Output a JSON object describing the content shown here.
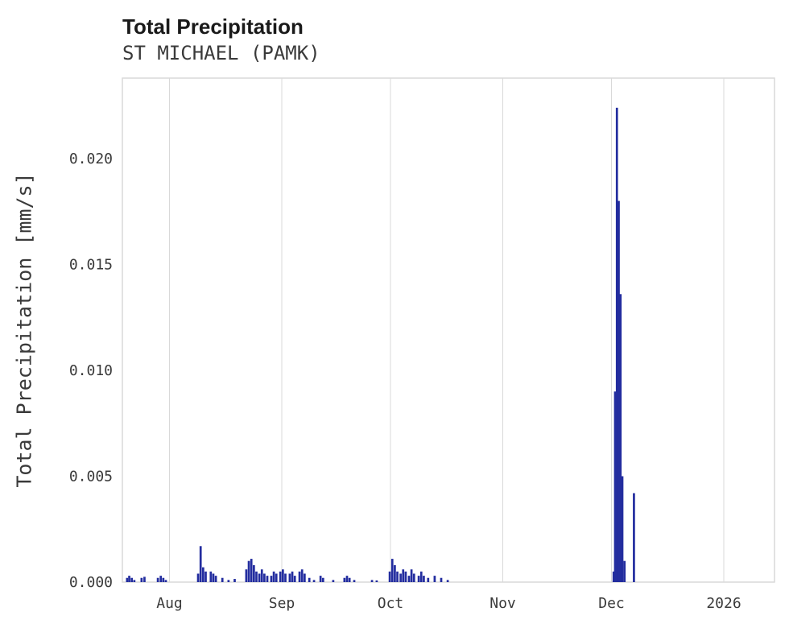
{
  "chart_data": {
    "type": "bar",
    "title": "Total Precipitation",
    "subtitle": "ST MICHAEL (PAMK)",
    "ylabel": "Total Precipitation [mm/s]",
    "xlabel": "",
    "legend": null,
    "grid": "vertical-only",
    "bar_color": "#232d9f",
    "grid_color": "#d9d9d9",
    "axis_text_color": "#3a3a3a",
    "ylim": [
      0,
      0.0238
    ],
    "x_domain_days": [
      0,
      180
    ],
    "x_ticks": [
      {
        "label": "Aug",
        "d": 13
      },
      {
        "label": "Sep",
        "d": 44
      },
      {
        "label": "Oct",
        "d": 74
      },
      {
        "label": "Nov",
        "d": 105
      },
      {
        "label": "Dec",
        "d": 135
      },
      {
        "label": "2026",
        "d": 166
      }
    ],
    "y_ticks": [
      {
        "label": "0.000",
        "v": 0.0
      },
      {
        "label": "0.005",
        "v": 0.005
      },
      {
        "label": "0.010",
        "v": 0.01
      },
      {
        "label": "0.015",
        "v": 0.015
      },
      {
        "label": "0.020",
        "v": 0.02
      }
    ],
    "bar_width_days": 0.6,
    "points": [
      [
        1.3,
        0.0002
      ],
      [
        1.9,
        0.0003
      ],
      [
        2.6,
        0.0002
      ],
      [
        3.3,
        0.0001
      ],
      [
        5.3,
        0.0002
      ],
      [
        6.1,
        0.00025
      ],
      [
        9.8,
        0.0002
      ],
      [
        10.6,
        0.0003
      ],
      [
        11.3,
        0.0002
      ],
      [
        12.0,
        0.0001
      ],
      [
        20.9,
        0.0004
      ],
      [
        21.6,
        0.0017
      ],
      [
        22.3,
        0.0007
      ],
      [
        23.0,
        0.0005
      ],
      [
        24.4,
        0.0005
      ],
      [
        25.1,
        0.0004
      ],
      [
        25.8,
        0.0003
      ],
      [
        27.6,
        0.0002
      ],
      [
        29.3,
        0.0001
      ],
      [
        31.0,
        0.00015
      ],
      [
        34.2,
        0.0006
      ],
      [
        34.9,
        0.001
      ],
      [
        35.6,
        0.0011
      ],
      [
        36.3,
        0.0008
      ],
      [
        37.0,
        0.0005
      ],
      [
        37.8,
        0.0004
      ],
      [
        38.5,
        0.0006
      ],
      [
        39.2,
        0.0004
      ],
      [
        40.0,
        0.0003
      ],
      [
        41.1,
        0.0003
      ],
      [
        41.8,
        0.0005
      ],
      [
        42.5,
        0.0004
      ],
      [
        43.6,
        0.0005
      ],
      [
        44.3,
        0.0006
      ],
      [
        45.0,
        0.0004
      ],
      [
        46.2,
        0.0004
      ],
      [
        46.9,
        0.0005
      ],
      [
        47.6,
        0.0003
      ],
      [
        48.9,
        0.0005
      ],
      [
        49.6,
        0.0006
      ],
      [
        50.3,
        0.0004
      ],
      [
        51.6,
        0.0002
      ],
      [
        52.9,
        0.0001
      ],
      [
        54.7,
        0.0003
      ],
      [
        55.4,
        0.0002
      ],
      [
        58.2,
        0.0001
      ],
      [
        61.3,
        0.0002
      ],
      [
        62.0,
        0.0003
      ],
      [
        62.7,
        0.0002
      ],
      [
        64.0,
        0.0001
      ],
      [
        68.9,
        0.0001
      ],
      [
        70.2,
        8e-05
      ],
      [
        73.8,
        0.0005
      ],
      [
        74.5,
        0.0011
      ],
      [
        75.2,
        0.0008
      ],
      [
        75.9,
        0.0005
      ],
      [
        76.8,
        0.0004
      ],
      [
        77.5,
        0.0006
      ],
      [
        78.2,
        0.0005
      ],
      [
        79.1,
        0.0003
      ],
      [
        79.8,
        0.0006
      ],
      [
        80.5,
        0.0004
      ],
      [
        81.8,
        0.0003
      ],
      [
        82.5,
        0.0005
      ],
      [
        83.2,
        0.0003
      ],
      [
        84.4,
        0.0002
      ],
      [
        86.2,
        0.0003
      ],
      [
        88.0,
        0.0002
      ],
      [
        89.8,
        0.0001
      ],
      [
        135.6,
        0.0005
      ],
      [
        136.0,
        0.009
      ],
      [
        136.5,
        0.0224
      ],
      [
        137.0,
        0.018
      ],
      [
        137.5,
        0.0136
      ],
      [
        138.0,
        0.005
      ],
      [
        138.6,
        0.001
      ],
      [
        141.2,
        0.0042
      ]
    ]
  }
}
